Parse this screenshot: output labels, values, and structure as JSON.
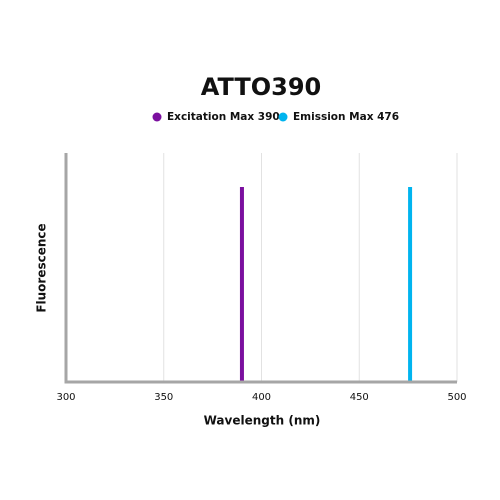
{
  "chart_data": {
    "type": "vline",
    "title": "ATTO390",
    "xlabel": "Wavelength (nm)",
    "ylabel": "Fluorescence",
    "xlim": [
      300,
      500
    ],
    "xticks": [
      300,
      350,
      400,
      450,
      500
    ],
    "grid": true,
    "series": [
      {
        "name": "Excitation Max 390",
        "color": "#7b0f9f",
        "x": [
          390
        ]
      },
      {
        "name": "Emission Max 476",
        "color": "#00b4ef",
        "x": [
          476
        ]
      }
    ]
  }
}
